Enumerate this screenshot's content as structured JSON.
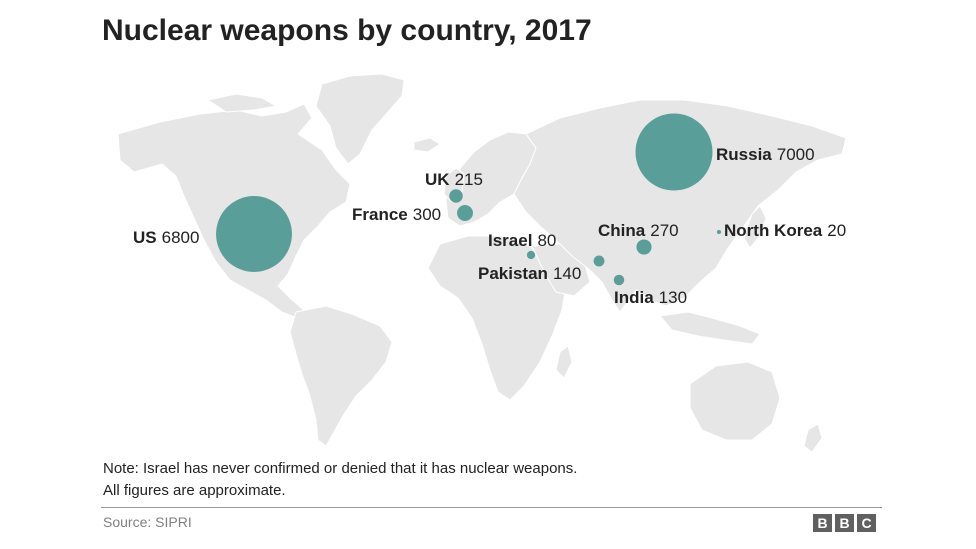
{
  "title": "Nuclear weapons by country, 2017",
  "colors": {
    "bubble": "#5a9e9a",
    "land": "#e6e6e6",
    "text": "#222222",
    "source": "#808080"
  },
  "countries": [
    {
      "name": "US",
      "value_label": "6800",
      "warheads": 6800
    },
    {
      "name": "Russia",
      "value_label": "7000",
      "warheads": 7000
    },
    {
      "name": "UK",
      "value_label": "215",
      "warheads": 215
    },
    {
      "name": "France",
      "value_label": "300",
      "warheads": 300
    },
    {
      "name": "China",
      "value_label": "270",
      "warheads": 270
    },
    {
      "name": "Israel",
      "value_label": "80",
      "warheads": 80
    },
    {
      "name": "Pakistan",
      "value_label": "140",
      "warheads": 140
    },
    {
      "name": "India",
      "value_label": "130",
      "warheads": 130
    },
    {
      "name": "North Korea",
      "value_label": "20",
      "warheads": 20
    }
  ],
  "note": {
    "line1": "Note: Israel has never confirmed or denied that it has nuclear weapons.",
    "line2": "All figures are approximate."
  },
  "footer": {
    "source": "Source: SIPRI",
    "logo_letters": [
      "B",
      "B",
      "C"
    ]
  }
}
